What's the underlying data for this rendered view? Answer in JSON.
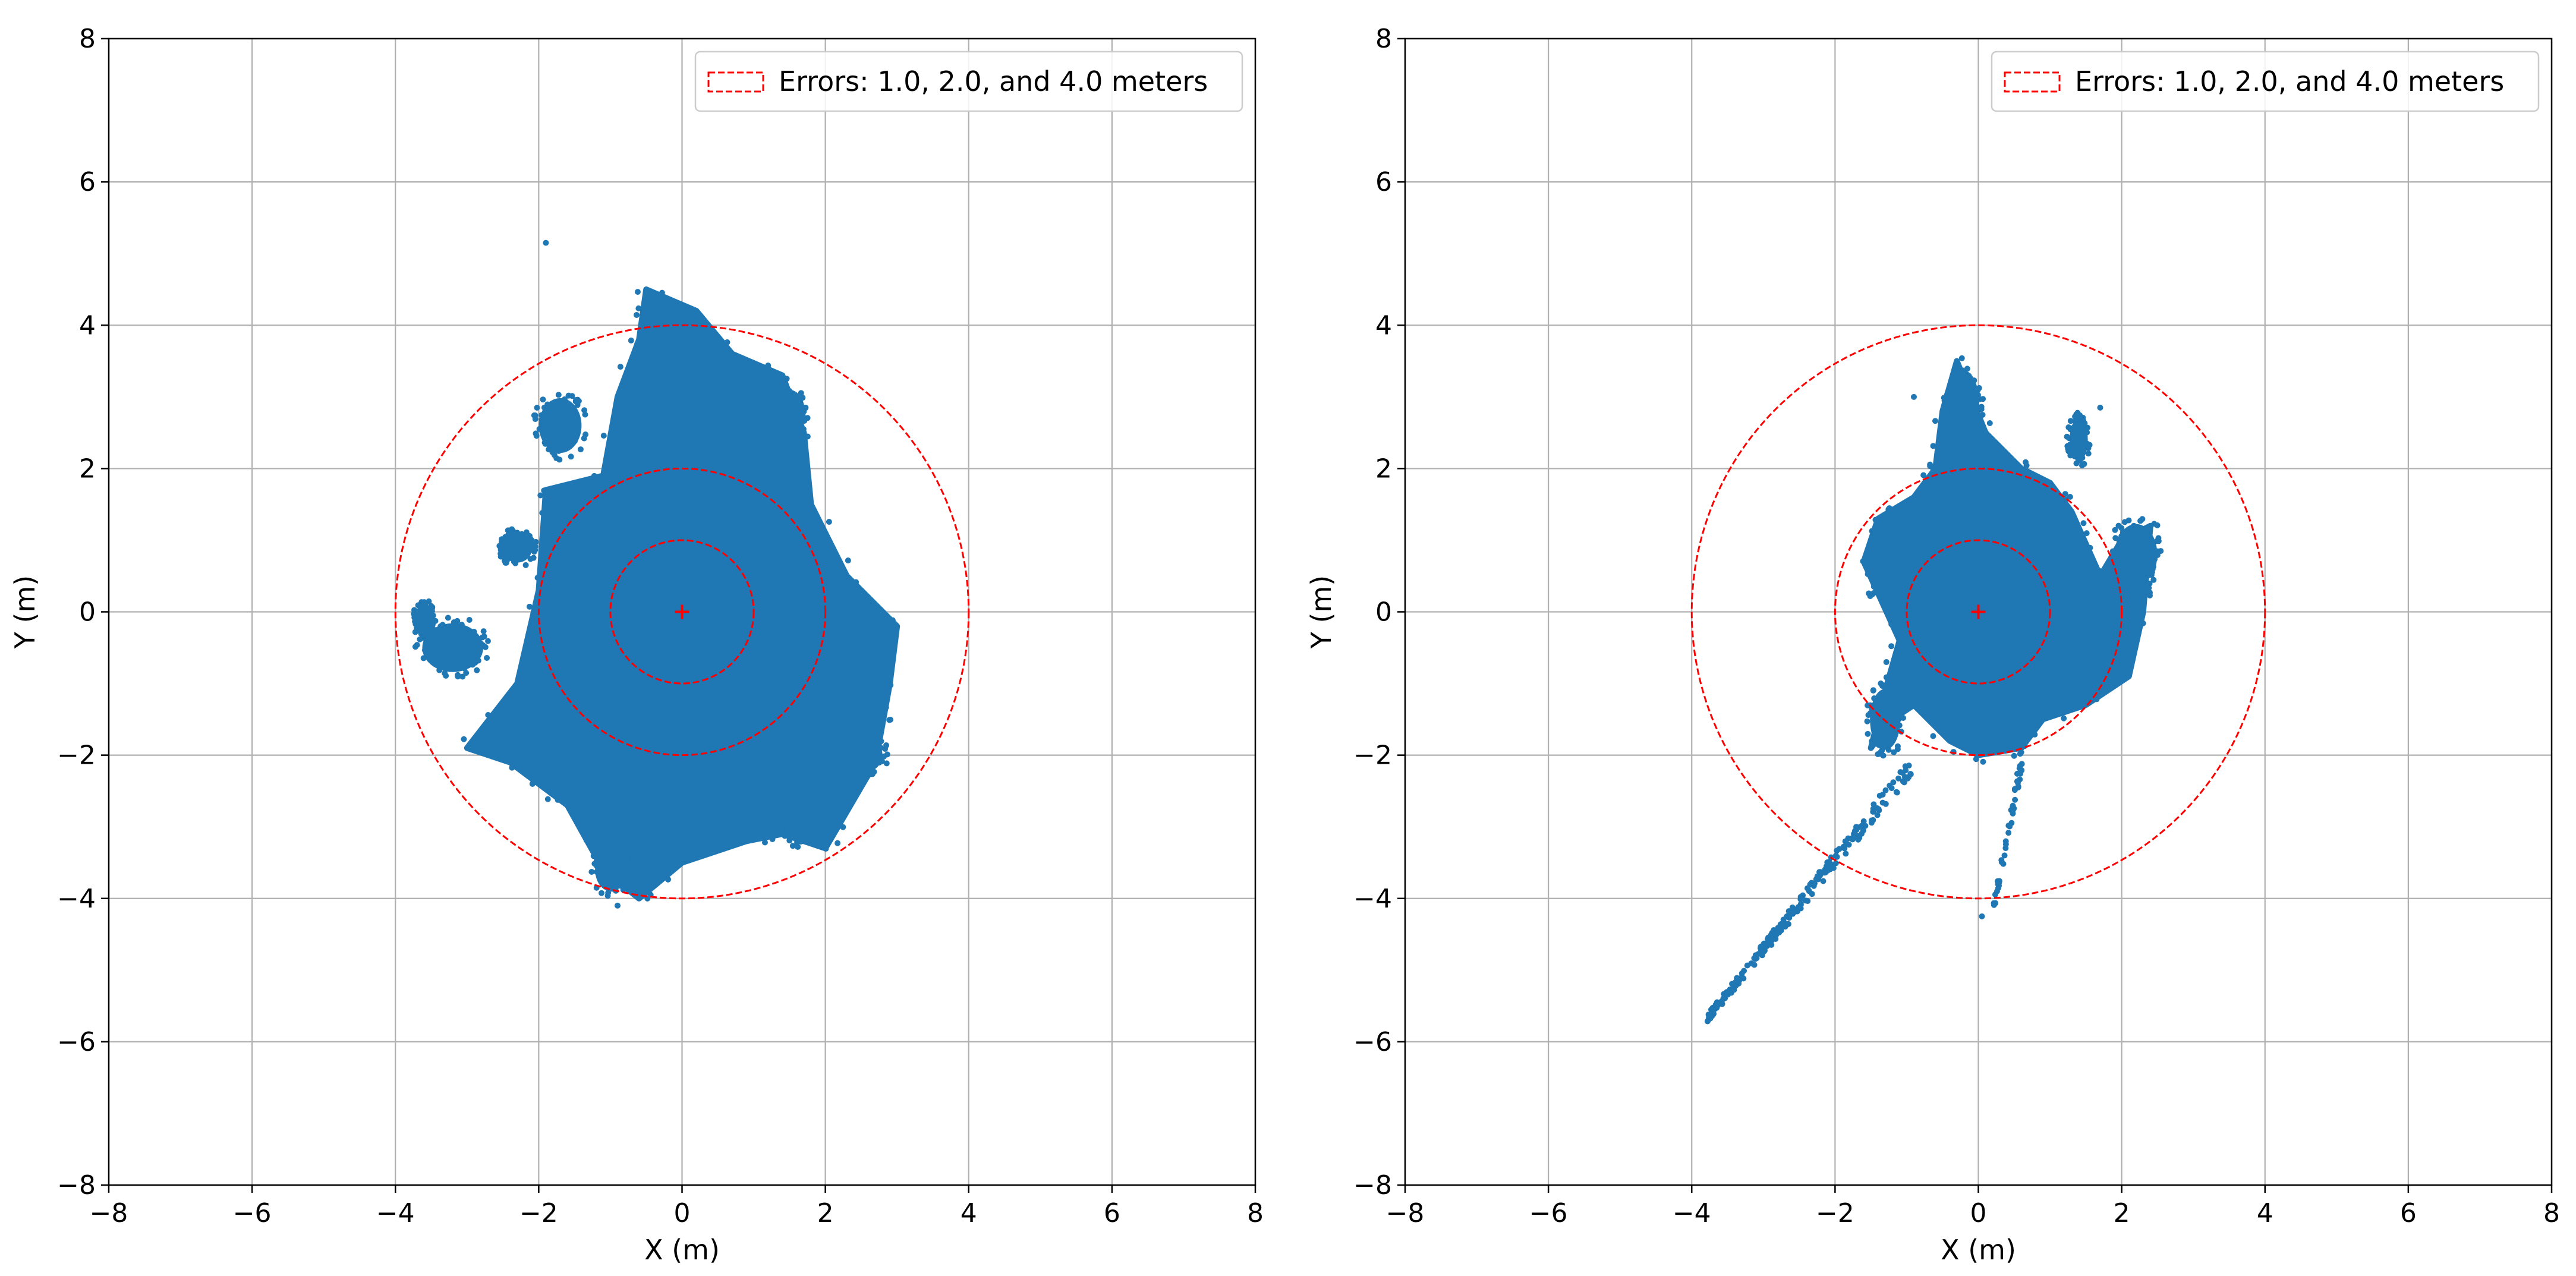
{
  "chart_data": [
    {
      "type": "scatter",
      "panel": "left",
      "xlabel": "X (m)",
      "ylabel": "Y (m)",
      "xlim": [
        -8,
        8
      ],
      "ylim": [
        -8,
        8
      ],
      "xticks": [
        -8,
        -6,
        -4,
        -2,
        0,
        2,
        4,
        6,
        8
      ],
      "yticks": [
        -8,
        -6,
        -4,
        -2,
        0,
        2,
        4,
        6,
        8
      ],
      "xtick_labels": [
        "−8",
        "−6",
        "−4",
        "−2",
        "0",
        "2",
        "4",
        "6",
        "8"
      ],
      "ytick_labels": [
        "−8",
        "−6",
        "−4",
        "−2",
        "0",
        "2",
        "4",
        "6",
        "8"
      ],
      "grid": true,
      "legend": {
        "placement": "top-right",
        "label": "Errors: 1.0, 2.0, and 4.0 meters"
      },
      "error_circles": {
        "radii": [
          1.0,
          2.0,
          4.0
        ],
        "center": [
          0,
          0
        ],
        "color": "#ff0000",
        "style": "dashed"
      },
      "origin_marker": {
        "x": 0,
        "y": 0,
        "color": "#ff0000",
        "shape": "plus"
      },
      "scatter": {
        "color": "#1f77b4",
        "main_cloud_outline": [
          [
            -0.5,
            4.5
          ],
          [
            0.2,
            4.2
          ],
          [
            0.7,
            3.6
          ],
          [
            1.4,
            3.3
          ],
          [
            1.7,
            2.5
          ],
          [
            1.8,
            1.5
          ],
          [
            2.3,
            0.5
          ],
          [
            3.0,
            -0.2
          ],
          [
            2.9,
            -1.0
          ],
          [
            2.7,
            -2.1
          ],
          [
            2.0,
            -3.3
          ],
          [
            1.4,
            -3.1
          ],
          [
            0.9,
            -3.2
          ],
          [
            0.0,
            -3.5
          ],
          [
            -0.6,
            -4.0
          ],
          [
            -1.1,
            -3.6
          ],
          [
            -1.6,
            -2.7
          ],
          [
            -2.4,
            -2.1
          ],
          [
            -3.0,
            -1.9
          ],
          [
            -2.3,
            -1.0
          ],
          [
            -2.0,
            0.3
          ],
          [
            -1.9,
            1.7
          ],
          [
            -1.1,
            1.9
          ],
          [
            -0.9,
            3.0
          ],
          [
            -0.6,
            3.8
          ]
        ],
        "clusters": [
          {
            "x": -1.7,
            "y": 2.6,
            "rx": 0.35,
            "ry": 0.45
          },
          {
            "x": -2.3,
            "y": 0.9,
            "rx": 0.25,
            "ry": 0.25
          },
          {
            "x": -3.2,
            "y": -0.5,
            "rx": 0.5,
            "ry": 0.4
          },
          {
            "x": -3.6,
            "y": -0.1,
            "rx": 0.15,
            "ry": 0.25
          },
          {
            "x": 1.6,
            "y": -2.9,
            "rx": 0.3,
            "ry": 0.35
          },
          {
            "x": 2.5,
            "y": -2.0,
            "rx": 0.35,
            "ry": 0.3
          },
          {
            "x": -1.0,
            "y": -3.6,
            "rx": 0.25,
            "ry": 0.35
          },
          {
            "x": 1.5,
            "y": 2.8,
            "rx": 0.25,
            "ry": 0.35
          }
        ],
        "outliers": [
          [
            -1.9,
            5.15
          ],
          [
            -0.9,
            -4.1
          ]
        ]
      }
    },
    {
      "type": "scatter",
      "panel": "right",
      "xlabel": "X (m)",
      "ylabel": "Y (m)",
      "xlim": [
        -8,
        8
      ],
      "ylim": [
        -8,
        8
      ],
      "xticks": [
        -8,
        -6,
        -4,
        -2,
        0,
        2,
        4,
        6,
        8
      ],
      "yticks": [
        -8,
        -6,
        -4,
        -2,
        0,
        2,
        4,
        6,
        8
      ],
      "xtick_labels": [
        "−8",
        "−6",
        "−4",
        "−2",
        "0",
        "2",
        "4",
        "6",
        "8"
      ],
      "ytick_labels": [
        "−8",
        "−6",
        "−4",
        "−2",
        "0",
        "2",
        "4",
        "6",
        "8"
      ],
      "grid": true,
      "legend": {
        "placement": "top-right",
        "label": "Errors: 1.0, 2.0, and 4.0 meters"
      },
      "error_circles": {
        "radii": [
          1.0,
          2.0,
          4.0
        ],
        "center": [
          0,
          0
        ],
        "color": "#ff0000",
        "style": "dashed"
      },
      "origin_marker": {
        "x": 0,
        "y": 0,
        "color": "#ff0000",
        "shape": "plus"
      },
      "scatter": {
        "color": "#1f77b4",
        "main_cloud_outline": [
          [
            -0.3,
            3.5
          ],
          [
            0.1,
            2.5
          ],
          [
            0.6,
            2.0
          ],
          [
            1.0,
            1.8
          ],
          [
            1.3,
            1.4
          ],
          [
            1.7,
            0.5
          ],
          [
            2.0,
            1.0
          ],
          [
            2.4,
            1.2
          ],
          [
            2.3,
            0.0
          ],
          [
            2.1,
            -0.9
          ],
          [
            1.5,
            -1.3
          ],
          [
            0.9,
            -1.5
          ],
          [
            0.6,
            -1.9
          ],
          [
            0.0,
            -2.0
          ],
          [
            -0.4,
            -1.8
          ],
          [
            -0.9,
            -1.3
          ],
          [
            -1.2,
            -1.5
          ],
          [
            -1.5,
            -1.9
          ],
          [
            -1.3,
            -1.1
          ],
          [
            -1.1,
            -0.4
          ],
          [
            -1.6,
            0.7
          ],
          [
            -1.4,
            1.3
          ],
          [
            -0.9,
            1.6
          ],
          [
            -0.6,
            2.0
          ],
          [
            -0.5,
            2.8
          ]
        ],
        "clusters": [
          {
            "x": 1.4,
            "y": 2.4,
            "rx": 0.15,
            "ry": 0.35
          },
          {
            "x": 2.2,
            "y": 0.8,
            "rx": 0.35,
            "ry": 0.5
          },
          {
            "x": -0.2,
            "y": 2.9,
            "rx": 0.25,
            "ry": 0.55
          },
          {
            "x": -1.3,
            "y": -1.5,
            "rx": 0.25,
            "ry": 0.5
          }
        ],
        "trails": [
          {
            "from": [
              -0.9,
              -2.1
            ],
            "to": [
              -3.8,
              -5.7
            ],
            "width": 0.18,
            "count": 230
          },
          {
            "from": [
              0.6,
              -2.1
            ],
            "to": [
              0.2,
              -4.2
            ],
            "width": 0.07,
            "count": 45
          }
        ],
        "outliers": [
          [
            -0.9,
            3.0
          ],
          [
            1.7,
            2.85
          ],
          [
            0.05,
            -4.25
          ]
        ]
      }
    }
  ]
}
